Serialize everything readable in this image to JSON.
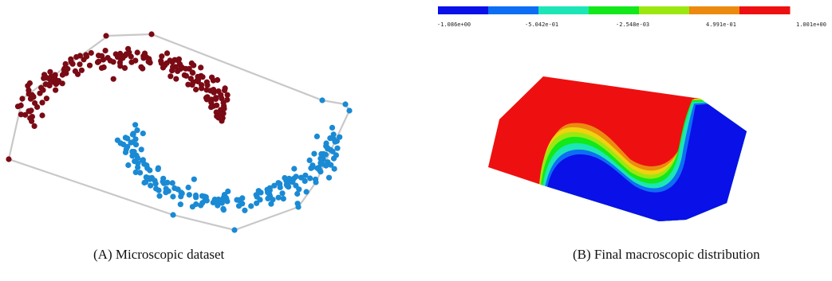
{
  "panel_a": {
    "caption": "(A) Microscopic dataset",
    "colors": {
      "upper_moon": "#7a0a14",
      "lower_moon": "#1a8ad4",
      "hull": "#c8c8c8"
    }
  },
  "panel_b": {
    "caption": "(B) Final macroscopic distribution",
    "colorbar": {
      "ticks": [
        "-1.086e+00",
        "-5.042e-01",
        "-2.548e-03",
        "4.991e-01",
        "1.001e+00"
      ],
      "colors": [
        "#0a10e8",
        "#0d6ef4",
        "#1ce6b6",
        "#12e81a",
        "#9be810",
        "#ec8a10",
        "#ee1010"
      ]
    },
    "field": {
      "high_color": "#ee1010",
      "low_color": "#0a10e8"
    }
  }
}
